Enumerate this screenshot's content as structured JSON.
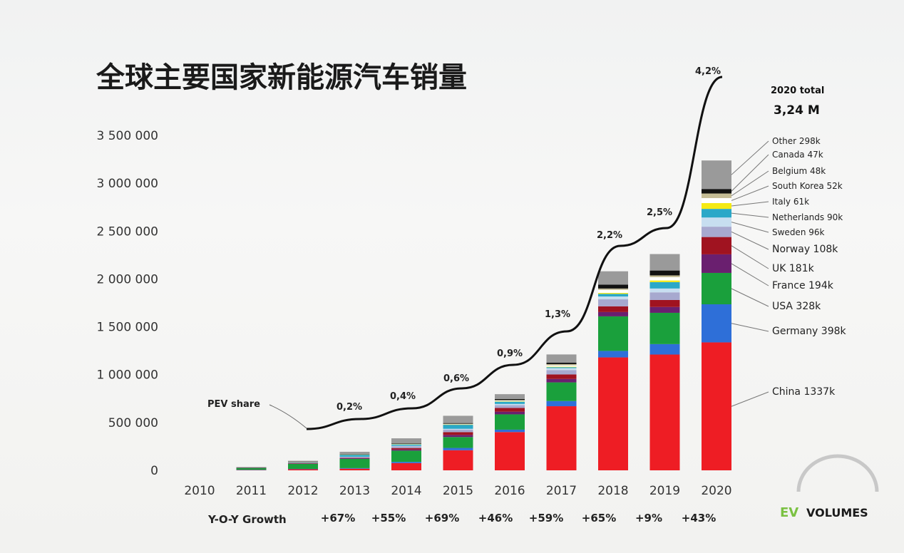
{
  "chart_data": {
    "type": "bar",
    "stacked": true,
    "title": "全球主要国家新能源汽车销量",
    "categories": [
      "2010",
      "2011",
      "2012",
      "2013",
      "2014",
      "2015",
      "2016",
      "2017",
      "2018",
      "2019",
      "2020"
    ],
    "ylim": [
      0,
      3500000
    ],
    "yticks": [
      "0",
      "500 000",
      "1 000 000",
      "1 500 000",
      "2 000 000",
      "2 500 000",
      "3 000 000",
      "3 500 000"
    ],
    "ytick_values": [
      0,
      500000,
      1000000,
      1500000,
      2000000,
      2500000,
      3000000,
      3500000
    ],
    "grid": false,
    "series": [
      {
        "name": "China",
        "color": "#ee1d24",
        "values": [
          0,
          5000,
          12000,
          17000,
          75000,
          210000,
          400000,
          670000,
          1180000,
          1210000,
          1337000
        ]
      },
      {
        "name": "Germany",
        "color": "#2e6fd8",
        "values": [
          0,
          1000,
          3000,
          6000,
          13000,
          24000,
          25000,
          54000,
          68000,
          109000,
          398000
        ]
      },
      {
        "name": "USA",
        "color": "#1aa03c",
        "values": [
          0,
          17000,
          53000,
          97000,
          118000,
          114000,
          160000,
          195000,
          361000,
          327000,
          328000
        ]
      },
      {
        "name": "France",
        "color": "#6a1f6f",
        "values": [
          0,
          2500,
          5000,
          9000,
          12000,
          22000,
          28000,
          36000,
          45000,
          61000,
          194000
        ]
      },
      {
        "name": "UK",
        "color": "#a01320",
        "values": [
          0,
          1000,
          2000,
          3500,
          15000,
          29000,
          39000,
          47000,
          60000,
          73000,
          181000
        ]
      },
      {
        "name": "Norway",
        "color": "#a7a9cf",
        "values": [
          0,
          1500,
          4000,
          8000,
          19000,
          26000,
          29000,
          46000,
          73000,
          80000,
          108000
        ]
      },
      {
        "name": "Sweden",
        "color": "#c7def0",
        "values": [
          0,
          200,
          800,
          1500,
          5000,
          9000,
          13000,
          20000,
          30000,
          40000,
          96000
        ]
      },
      {
        "name": "Netherlands",
        "color": "#2aa8c8",
        "values": [
          0,
          1000,
          5000,
          23000,
          15000,
          43000,
          24000,
          10000,
          27000,
          67000,
          90000
        ]
      },
      {
        "name": "Italy",
        "color": "#f5ea14",
        "values": [
          0,
          300,
          500,
          1000,
          1500,
          2000,
          2500,
          5000,
          10000,
          17000,
          61000
        ]
      },
      {
        "name": "South Korea",
        "color": "#ffffff",
        "values": [
          0,
          300,
          500,
          800,
          1500,
          3000,
          5500,
          14000,
          32000,
          35000,
          52000
        ]
      },
      {
        "name": "Belgium",
        "color": "#c4bc95",
        "values": [
          0,
          300,
          600,
          2000,
          2500,
          5000,
          9000,
          13000,
          14000,
          18000,
          48000
        ]
      },
      {
        "name": "Canada",
        "color": "#121212",
        "values": [
          0,
          500,
          1500,
          3000,
          5000,
          7000,
          11000,
          16000,
          40000,
          51000,
          47000
        ]
      },
      {
        "name": "Other",
        "color": "#9a9a9a",
        "values": [
          0,
          4000,
          12000,
          22000,
          52000,
          76000,
          50000,
          85000,
          140000,
          172000,
          298000
        ]
      }
    ],
    "pev_share": {
      "label": "PEV share",
      "categories": [
        "2013",
        "2014",
        "2015",
        "2016",
        "2017",
        "2018",
        "2019",
        "2020"
      ],
      "values": [
        "0,2%",
        "0,4%",
        "0,6%",
        "0,9%",
        "1,3%",
        "2,2%",
        "2,5%",
        "4,2%"
      ]
    },
    "total": {
      "label": "2020 total",
      "value": "3,24 M"
    },
    "legend": [
      {
        "series": "Other",
        "text": "Other 298k",
        "size": "small"
      },
      {
        "series": "Canada",
        "text": "Canada 47k",
        "size": "small"
      },
      {
        "series": "Belgium",
        "text": "Belgium 48k",
        "size": "small"
      },
      {
        "series": "South Korea",
        "text": "South Korea 52k",
        "size": "small"
      },
      {
        "series": "Italy",
        "text": "Italy  61k",
        "size": "small"
      },
      {
        "series": "Netherlands",
        "text": "Netherlands 90k",
        "size": "small"
      },
      {
        "series": "Sweden",
        "text": "Sweden  96k",
        "size": "small"
      },
      {
        "series": "Norway",
        "text": "Norway  108k",
        "size": "large"
      },
      {
        "series": "UK",
        "text": "UK  181k",
        "size": "large"
      },
      {
        "series": "France",
        "text": "France  194k",
        "size": "large"
      },
      {
        "series": "USA",
        "text": "USA 328k",
        "size": "large"
      },
      {
        "series": "Germany",
        "text": "Germany  398k",
        "size": "large"
      },
      {
        "series": "China",
        "text": "China  1337k",
        "size": "large"
      }
    ],
    "growth": {
      "label": "Y-O-Y Growth",
      "values": [
        "+67%",
        "+55%",
        "+69%",
        "+46%",
        "+59%",
        "+65%",
        "+9%",
        "+43%"
      ]
    },
    "logo": {
      "text_ev": "EV",
      "text_volumes": "VOLUMES",
      "color_ev": "#7ac142"
    }
  }
}
